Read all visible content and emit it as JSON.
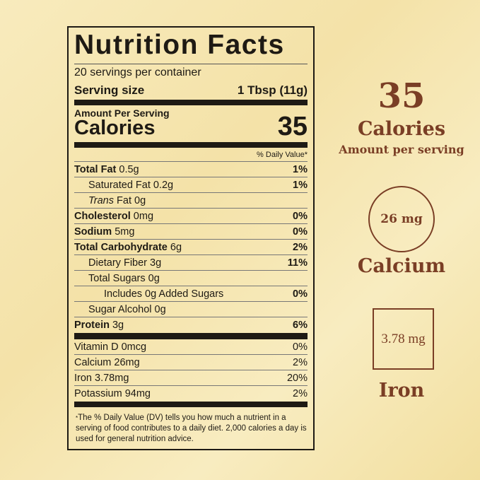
{
  "label": {
    "title": "Nutrition Facts",
    "servings": "20 servings per container",
    "serving_size_label": "Serving size",
    "serving_size_value": "1 Tbsp (11g)",
    "amount_per_serving": "Amount Per Serving",
    "calories_label": "Calories",
    "calories_value": "35",
    "dv_header": "% Daily Value*",
    "nutrients": [
      {
        "name": "Total Fat",
        "amount": "0.5g",
        "dv": "1%"
      },
      {
        "name": "Saturated Fat",
        "amount": "0.2g",
        "dv": "1%"
      },
      {
        "name": "Trans",
        "name2": "Fat 0g",
        "dv": ""
      },
      {
        "name": "Cholesterol",
        "amount": "0mg",
        "dv": "0%"
      },
      {
        "name": "Sodium",
        "amount": "5mg",
        "dv": "0%"
      },
      {
        "name": "Total Carbohydrate",
        "amount": "6g",
        "dv": "2%"
      },
      {
        "name": "Dietary Fiber",
        "amount": "3g",
        "dv": "11%"
      },
      {
        "name": "Total Sugars",
        "amount": "0g",
        "dv": ""
      },
      {
        "name": "Includes 0g Added Sugars",
        "amount": "",
        "dv": "0%"
      },
      {
        "name": "Sugar Alcohol",
        "amount": "0g",
        "dv": ""
      },
      {
        "name": "Protein",
        "amount": "3g",
        "dv": "6%"
      }
    ],
    "vitamins": [
      {
        "name": "Vitamin D 0mcg",
        "dv": "0%"
      },
      {
        "name": "Calcium 26mg",
        "dv": "2%"
      },
      {
        "name": "Iron 3.78mg",
        "dv": "20%"
      },
      {
        "name": "Potassium 94mg",
        "dv": "2%"
      }
    ],
    "footnote_star": "*",
    "footnote": "The % Daily Value (DV) tells you how much a nutrient in a serving of food contributes to a daily diet. 2,000 calories a day is used for general nutrition advice."
  },
  "highlights": {
    "calories_value": "35",
    "calories_label": "Calories",
    "calories_sub": "Amount per serving",
    "calcium_value": "26 mg",
    "calcium_label": "Calcium",
    "iron_value": "3.78 mg",
    "iron_label": "Iron"
  },
  "colors": {
    "accent": "#7a3e25",
    "background": "#f6e6b0",
    "ink": "#1e1a14"
  }
}
